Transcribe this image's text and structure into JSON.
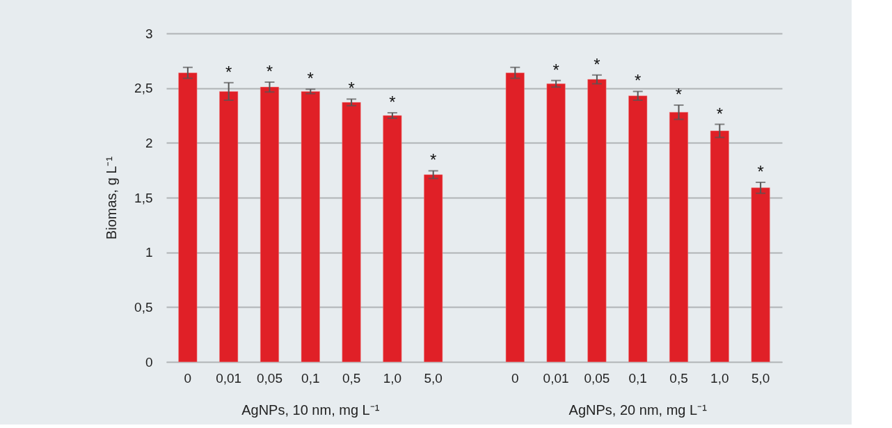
{
  "chart_data": {
    "type": "bar",
    "ylabel": "Biomas, g L⁻¹",
    "categories": [
      "0",
      "0,01",
      "0,05",
      "0,1",
      "0,5",
      "1,0",
      "5,0",
      null,
      "0",
      "0,01",
      "0,05",
      "0,1",
      "0,5",
      "1,0",
      "5,0"
    ],
    "series": [
      {
        "color": "#e02027",
        "values": [
          2.64,
          2.47,
          2.51,
          2.47,
          2.37,
          2.25,
          1.71,
          null,
          2.64,
          2.54,
          2.58,
          2.43,
          2.28,
          2.11,
          1.59
        ],
        "errors": [
          0.05,
          0.08,
          0.045,
          0.02,
          0.03,
          0.025,
          0.035,
          null,
          0.05,
          0.03,
          0.04,
          0.04,
          0.065,
          0.06,
          0.05
        ],
        "value_labels": [
          null,
          "*",
          "*",
          "*",
          "*",
          "*",
          "*",
          null,
          null,
          "*",
          "*",
          "*",
          "*",
          "*",
          "*"
        ]
      }
    ],
    "ylim": [
      0,
      3
    ],
    "yticks": [
      0,
      {
        "value": 0.5,
        "label": "0,5"
      },
      1,
      {
        "value": 1.5,
        "label": "1,5"
      },
      2,
      {
        "value": 2.5,
        "label": "2,5"
      },
      3
    ],
    "grid": "y",
    "annotations": [
      "AgNPs, 10 nm,   mg L⁻¹",
      "AgNPs,  20 nm, mg L⁻¹"
    ]
  }
}
